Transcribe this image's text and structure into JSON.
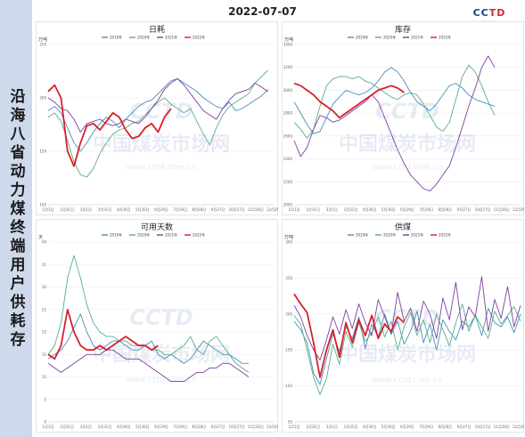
{
  "sidebar": {
    "title": "沿海八省动力煤终端用户供耗存"
  },
  "header": {
    "date": "2022-07-07"
  },
  "logo": {
    "mark_a": "CC",
    "mark_b": "TD",
    "subtitle": "中国煤炭市场网"
  },
  "watermark": {
    "brand": "中国煤炭市场网",
    "url": "www.cctd.com.cn",
    "logo": "CCTD"
  },
  "colors": {
    "2019": "#4a8fb8",
    "2020": "#5aae8a",
    "2021": "#7d3fa0",
    "2022": "#d8202a"
  },
  "chart_data": [
    {
      "id": "consumption",
      "type": "line",
      "title": "日耗",
      "unit": "万吨",
      "ylim": [
        100,
        250
      ],
      "yticks": [
        100,
        150,
        200,
        250
      ],
      "xticks": [
        "1月1日",
        "1月31日",
        "3月1日",
        "3月31日",
        "4月30日",
        "5月30日",
        "6月29日",
        "7月29日",
        "8月28日",
        "9月27日",
        "10月27日",
        "11月26日",
        "12月26日"
      ],
      "legend": [
        "2019年",
        "2020年",
        "2021年",
        "2022年"
      ],
      "series": [
        {
          "name": "2019年",
          "values": [
            188,
            192,
            186,
            172,
            158,
            150,
            158,
            168,
            176,
            182,
            178,
            172,
            180,
            186,
            192,
            196,
            198,
            204,
            210,
            216,
            218,
            214,
            210,
            206,
            200,
            196,
            192,
            190,
            196,
            188,
            190,
            194,
            198,
            202,
            208
          ]
        },
        {
          "name": "2020年",
          "values": [
            182,
            186,
            178,
            160,
            140,
            128,
            126,
            134,
            148,
            158,
            166,
            170,
            172,
            176,
            178,
            184,
            190,
            196,
            200,
            194,
            190,
            186,
            190,
            178,
            166,
            156,
            172,
            184,
            192,
            196,
            200,
            204,
            214,
            220,
            226
          ]
        },
        {
          "name": "2021年",
          "values": [
            200,
            196,
            190,
            188,
            180,
            168,
            176,
            178,
            180,
            176,
            174,
            176,
            180,
            178,
            176,
            182,
            190,
            198,
            208,
            214,
            218,
            212,
            204,
            196,
            188,
            184,
            180,
            190,
            198,
            204,
            206,
            208,
            214,
            210,
            206
          ]
        },
        {
          "name": "2022年",
          "values": [
            206,
            212,
            200,
            150,
            136,
            158,
            174,
            176,
            170,
            178,
            186,
            182,
            170,
            162,
            164,
            172,
            176,
            168,
            182,
            190
          ]
        }
      ]
    },
    {
      "id": "inventory",
      "type": "line",
      "title": "库存",
      "unit": "万吨",
      "ylim": [
        2000,
        3400
      ],
      "yticks": [
        2000,
        2200,
        2400,
        2600,
        2800,
        3000,
        3200,
        3400
      ],
      "xticks": [
        "1月1日",
        "1月31日",
        "3月1日",
        "3月31日",
        "4月30日",
        "5月30日",
        "6月29日",
        "7月29日",
        "8月28日",
        "9月27日",
        "10月27日",
        "11月26日",
        "12月26日"
      ],
      "legend": [
        "2019年",
        "2020年",
        "2021年",
        "2022年"
      ],
      "series": [
        {
          "name": "2019年",
          "values": [
            2900,
            2800,
            2700,
            2620,
            2640,
            2760,
            2880,
            2940,
            3000,
            2980,
            2960,
            2980,
            3020,
            3080,
            3160,
            3200,
            3160,
            3080,
            2980,
            2900,
            2860,
            2820,
            2880,
            2960,
            3040,
            3060,
            3020,
            2960,
            2920,
            2900,
            2880,
            2860
          ]
        },
        {
          "name": "2020年",
          "values": [
            2720,
            2660,
            2580,
            2660,
            2860,
            3040,
            3100,
            3120,
            3120,
            3100,
            3120,
            3080,
            3060,
            3020,
            2980,
            2940,
            2920,
            2960,
            2980,
            2960,
            2880,
            2780,
            2680,
            2640,
            2720,
            2920,
            3120,
            3220,
            3160,
            3040,
            2900,
            2780
          ]
        },
        {
          "name": "2021年",
          "values": [
            2560,
            2420,
            2500,
            2660,
            2780,
            2760,
            2720,
            2740,
            2780,
            2820,
            2860,
            2900,
            2960,
            2900,
            2760,
            2620,
            2480,
            2360,
            2260,
            2200,
            2140,
            2120,
            2180,
            2260,
            2340,
            2500,
            2680,
            2860,
            3020,
            3200,
            3300,
            3200
          ]
        },
        {
          "name": "2022年",
          "values": [
            3060,
            3040,
            3000,
            2960,
            2900,
            2860,
            2820,
            2760,
            2800,
            2840,
            2880,
            2920,
            2960,
            3000,
            3020,
            3040,
            3020,
            2980
          ]
        }
      ]
    },
    {
      "id": "days",
      "type": "line",
      "title": "可用天数",
      "unit": "天",
      "ylim": [
        0,
        40
      ],
      "yticks": [
        0,
        5,
        10,
        15,
        20,
        25,
        30,
        35,
        40
      ],
      "xticks": [
        "1月1日",
        "1月31日",
        "3月1日",
        "3月31日",
        "4月30日",
        "5月30日",
        "6月29日",
        "7月29日",
        "8月28日",
        "9月27日",
        "10月27日",
        "11月26日",
        "12月26日"
      ],
      "legend": [
        "2019年",
        "2020年",
        "2021年",
        "2022年"
      ],
      "series": [
        {
          "name": "2019年",
          "values": [
            14,
            15,
            16,
            18,
            21,
            24,
            20,
            17,
            16,
            17,
            18,
            18,
            17,
            16,
            16,
            17,
            18,
            15,
            14,
            15,
            14,
            13,
            14,
            16,
            18,
            17,
            16,
            15,
            15,
            14,
            13,
            13
          ]
        },
        {
          "name": "2020年",
          "values": [
            15,
            17,
            22,
            32,
            37,
            32,
            26,
            22,
            20,
            19,
            19,
            18,
            18,
            17,
            17,
            17,
            16,
            16,
            15,
            15,
            16,
            17,
            19,
            16,
            15,
            18,
            19,
            17,
            15,
            13,
            12,
            11
          ]
        },
        {
          "name": "2021年",
          "values": [
            13,
            12,
            11,
            12,
            13,
            14,
            15,
            15,
            15,
            16,
            16,
            15,
            14,
            14,
            14,
            13,
            12,
            11,
            10,
            9,
            9,
            9,
            10,
            11,
            11,
            12,
            12,
            13,
            13,
            12,
            11,
            10
          ]
        },
        {
          "name": "2022年",
          "values": [
            15,
            14,
            17,
            25,
            20,
            17,
            16,
            16,
            17,
            16,
            17,
            18,
            19,
            18,
            17,
            17,
            16,
            17
          ]
        }
      ]
    },
    {
      "id": "supply",
      "type": "line",
      "title": "供煤",
      "unit": "万吨",
      "ylim": [
        50,
        300
      ],
      "yticks": [
        50,
        100,
        150,
        200,
        250,
        300
      ],
      "xticks": [
        "1月1日",
        "1月31日",
        "3月1日",
        "3月31日",
        "4月30日",
        "5月30日",
        "6月29日",
        "7月29日",
        "8月28日",
        "9月27日",
        "10月27日",
        "11月26日",
        "12月26日"
      ],
      "legend": [
        "2019年",
        "2020年",
        "2021年",
        "2022年"
      ],
      "series": [
        {
          "name": "2019年",
          "values": [
            190,
            178,
            160,
            118,
            102,
            138,
            172,
            148,
            182,
            166,
            196,
            152,
            186,
            168,
            200,
            172,
            190,
            158,
            176,
            204,
            160,
            186,
            150,
            192,
            176,
            164,
            190,
            182,
            198,
            170,
            208,
            188,
            182,
            196,
            174,
            200
          ]
        },
        {
          "name": "2020年",
          "values": [
            198,
            186,
            150,
            112,
            88,
            110,
            158,
            130,
            176,
            154,
            188,
            162,
            174,
            196,
            168,
            190,
            150,
            182,
            202,
            170,
            192,
            160,
            200,
            178,
            156,
            188,
            214,
            176,
            198,
            182,
            166,
            204,
            186,
            198,
            210,
            190
          ]
        },
        {
          "name": "2021年",
          "values": [
            212,
            196,
            170,
            150,
            136,
            164,
            196,
            172,
            206,
            180,
            214,
            188,
            170,
            220,
            196,
            172,
            230,
            190,
            208,
            176,
            218,
            200,
            166,
            222,
            192,
            244,
            178,
            210,
            196,
            252,
            176,
            220,
            194,
            238,
            182,
            212
          ]
        },
        {
          "name": "2022年",
          "values": [
            228,
            214,
            202,
            160,
            112,
            150,
            178,
            140,
            188,
            160,
            192,
            170,
            198,
            166,
            186,
            176,
            196,
            188
          ]
        }
      ]
    }
  ]
}
